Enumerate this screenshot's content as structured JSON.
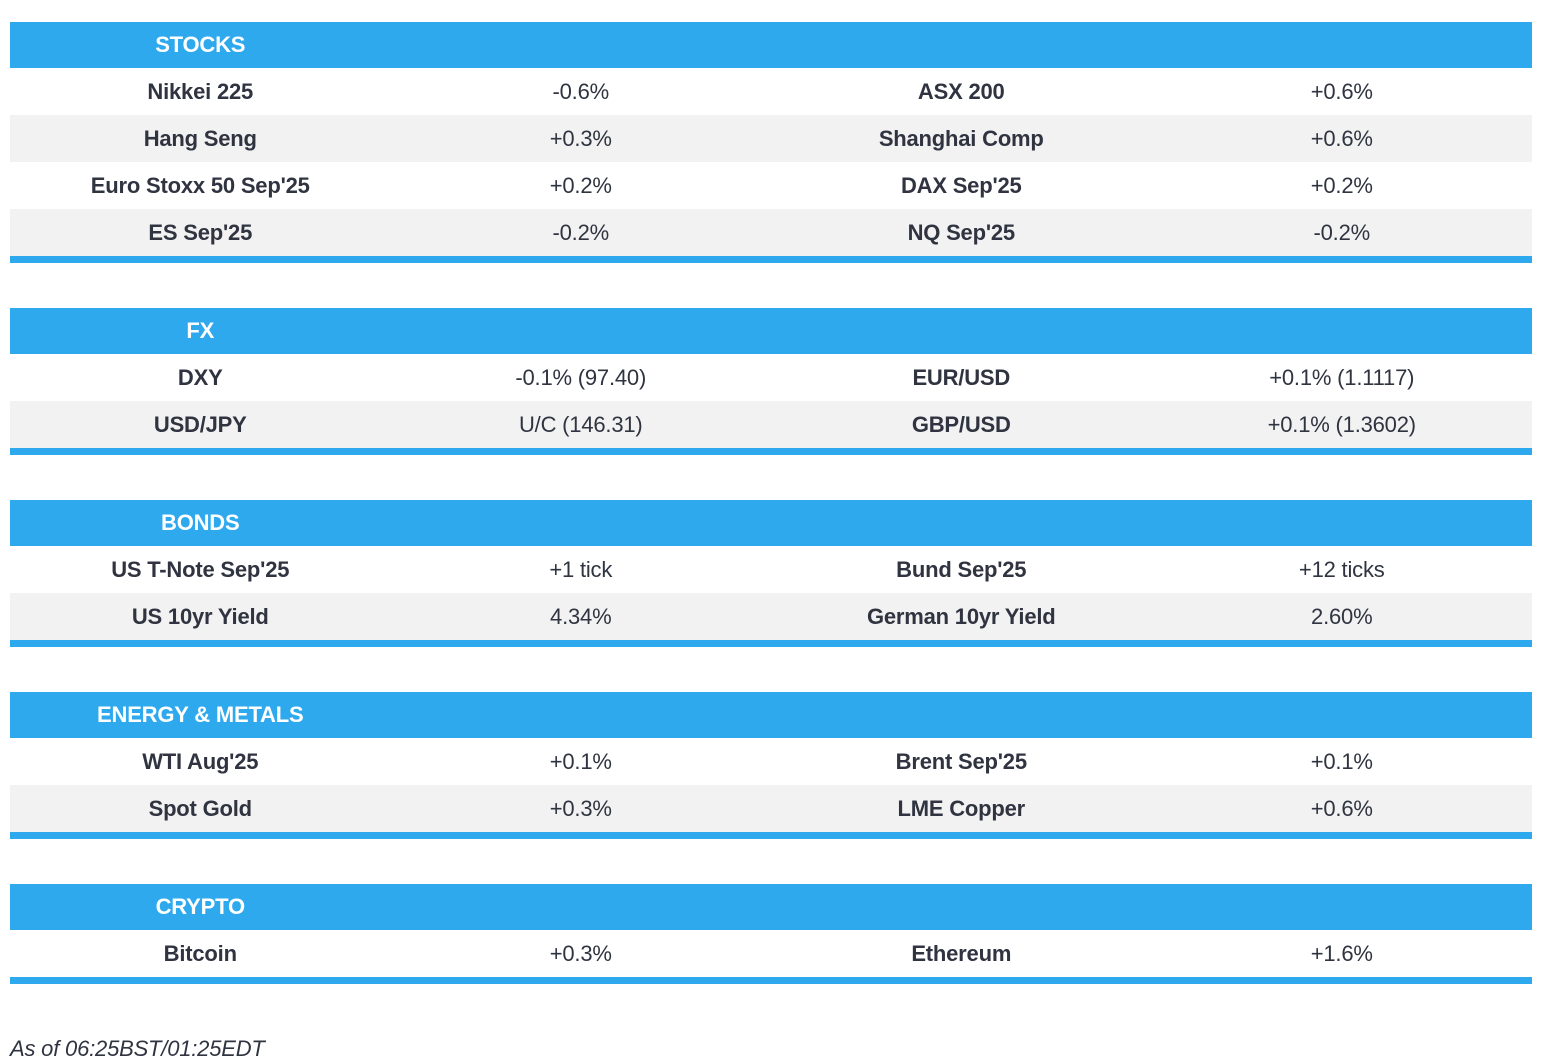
{
  "colors": {
    "accent_blue": "#2EA9EE",
    "row_alt_gray": "#F2F2F2",
    "text_dark": "#2F3440",
    "header_text": "#FFFFFF"
  },
  "sections": [
    {
      "id": "stocks",
      "title": "STOCKS",
      "rows": [
        [
          "Nikkei 225",
          "-0.6%",
          "ASX 200",
          "+0.6%"
        ],
        [
          "Hang Seng",
          "+0.3%",
          "Shanghai Comp",
          "+0.6%"
        ],
        [
          "Euro Stoxx 50 Sep'25",
          "+0.2%",
          "DAX Sep'25",
          "+0.2%"
        ],
        [
          "ES Sep'25",
          "-0.2%",
          "NQ Sep'25",
          "-0.2%"
        ]
      ]
    },
    {
      "id": "fx",
      "title": "FX",
      "rows": [
        [
          "DXY",
          "-0.1% (97.40)",
          "EUR/USD",
          "+0.1% (1.1117)"
        ],
        [
          "USD/JPY",
          "U/C (146.31)",
          "GBP/USD",
          "+0.1% (1.3602)"
        ]
      ]
    },
    {
      "id": "bonds",
      "title": "BONDS",
      "rows": [
        [
          "US T-Note Sep'25",
          "+1 tick",
          "Bund Sep'25",
          "+12 ticks"
        ],
        [
          "US 10yr Yield",
          "4.34%",
          "German 10yr Yield",
          "2.60%"
        ]
      ]
    },
    {
      "id": "energy-metals",
      "title": "ENERGY & METALS",
      "rows": [
        [
          "WTI Aug'25",
          "+0.1%",
          "Brent Sep'25",
          "+0.1%"
        ],
        [
          "Spot Gold",
          "+0.3%",
          "LME Copper",
          "+0.6%"
        ]
      ]
    },
    {
      "id": "crypto",
      "title": "CRYPTO",
      "rows": [
        [
          "Bitcoin",
          "+0.3%",
          "Ethereum",
          "+1.6%"
        ]
      ]
    }
  ],
  "footer": {
    "as_of": "As of 06:25BST/01:25EDT"
  }
}
